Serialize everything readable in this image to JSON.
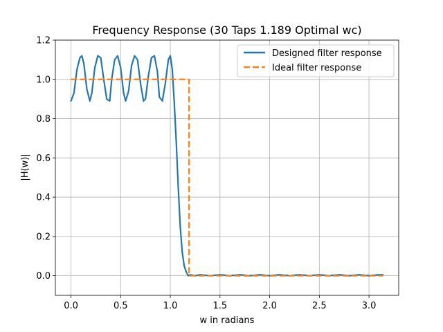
{
  "chart_data": {
    "type": "line",
    "title": "Frequency Response (30 Taps 1.189 Optimal wc)",
    "xlabel": "w in radians",
    "ylabel": "|H(w)|",
    "xlim": [
      -0.157,
      3.299
    ],
    "ylim": [
      -0.1,
      1.2
    ],
    "xticks": [
      0.0,
      0.5,
      1.0,
      1.5,
      2.0,
      2.5,
      3.0
    ],
    "xtick_labels": [
      "0.0",
      "0.5",
      "1.0",
      "1.5",
      "2.0",
      "2.5",
      "3.0"
    ],
    "yticks": [
      0.0,
      0.2,
      0.4,
      0.6,
      0.8,
      1.0,
      1.2
    ],
    "ytick_labels": [
      "0.0",
      "0.2",
      "0.4",
      "0.6",
      "0.8",
      "1.0",
      "1.2"
    ],
    "grid": true,
    "legend_position": "top-right",
    "series": [
      {
        "name": "Designed filter response",
        "color": "#1f77b4",
        "style": "solid",
        "x": [
          0.0,
          0.03,
          0.06,
          0.09,
          0.11,
          0.13,
          0.16,
          0.19,
          0.21,
          0.24,
          0.27,
          0.3,
          0.33,
          0.36,
          0.39,
          0.41,
          0.44,
          0.47,
          0.5,
          0.53,
          0.55,
          0.58,
          0.61,
          0.64,
          0.67,
          0.7,
          0.73,
          0.75,
          0.78,
          0.81,
          0.84,
          0.87,
          0.89,
          0.92,
          0.95,
          0.98,
          1.0,
          1.02,
          1.04,
          1.06,
          1.08,
          1.1,
          1.12,
          1.14,
          1.16,
          1.18,
          1.2,
          1.25,
          1.3,
          1.4,
          1.5,
          1.6,
          1.7,
          1.8,
          1.9,
          2.0,
          2.1,
          2.2,
          2.3,
          2.4,
          2.5,
          2.6,
          2.7,
          2.8,
          2.9,
          3.0,
          3.1,
          3.14
        ],
        "y": [
          0.89,
          0.93,
          1.05,
          1.11,
          1.12,
          1.08,
          0.95,
          0.89,
          0.93,
          1.06,
          1.12,
          1.11,
          1.0,
          0.9,
          0.89,
          1.0,
          1.1,
          1.12,
          1.06,
          0.93,
          0.89,
          0.94,
          1.07,
          1.12,
          1.1,
          0.98,
          0.89,
          0.9,
          1.02,
          1.11,
          1.12,
          1.04,
          0.91,
          0.89,
          0.98,
          1.1,
          1.12,
          1.05,
          0.88,
          0.68,
          0.45,
          0.25,
          0.12,
          0.05,
          0.02,
          0.0,
          0.005,
          0.0,
          0.005,
          0.0,
          0.005,
          0.0,
          0.005,
          0.0,
          0.005,
          0.0,
          0.005,
          0.0,
          0.005,
          0.0,
          0.005,
          0.0,
          0.005,
          0.0,
          0.005,
          0.0,
          0.005,
          0.005
        ]
      },
      {
        "name": "Ideal filter response",
        "color": "#ff7f0e",
        "style": "dashed",
        "x": [
          0.0,
          1.189,
          1.189,
          3.14
        ],
        "y": [
          1.0,
          1.0,
          0.0,
          0.0
        ]
      }
    ]
  }
}
